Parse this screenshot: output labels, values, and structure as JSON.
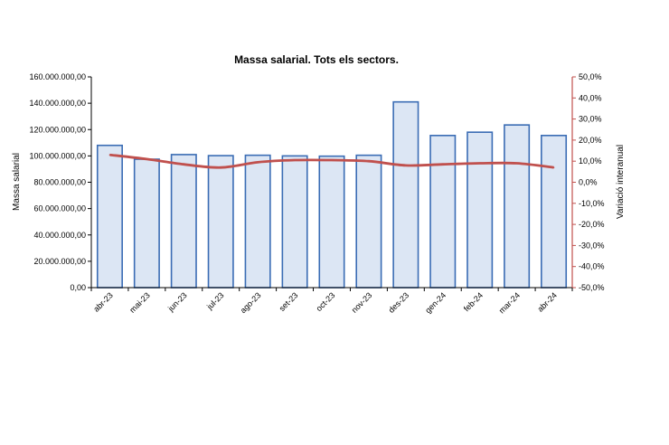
{
  "chart_data": {
    "type": "bar",
    "title": "Massa salarial. Tots els sectors.",
    "ylabel": "Massa salarial",
    "y2label": "Variació interanual",
    "categories": [
      "abr-23",
      "mai-23",
      "jun-23",
      "jul-23",
      "ago-23",
      "set-23",
      "oct-23",
      "nov-23",
      "des-23",
      "gen-24",
      "feb-24",
      "mar-24",
      "abr-24"
    ],
    "series": [
      {
        "name": "Massa salarial",
        "type": "bar",
        "axis": "left",
        "color": "#dce6f4",
        "stroke": "#3a6cb4",
        "values": [
          108000000,
          97500000,
          101000000,
          100200000,
          100500000,
          100000000,
          99800000,
          100500000,
          141000000,
          115500000,
          118000000,
          123500000,
          115500000
        ]
      },
      {
        "name": "Variació interanual",
        "type": "line",
        "axis": "right",
        "color": "#c0504d",
        "values": [
          13.0,
          11.0,
          8.5,
          7.0,
          9.5,
          10.5,
          10.5,
          10.0,
          8.0,
          8.5,
          9.0,
          9.0,
          7.0
        ]
      }
    ],
    "ylim": [
      0,
      160000000
    ],
    "yticks": [
      "0,00",
      "20.000.000,00",
      "40.000.000,00",
      "60.000.000,00",
      "80.000.000,00",
      "100.000.000,00",
      "120.000.000,00",
      "140.000.000,00",
      "160.000.000,00"
    ],
    "y2lim": [
      -50,
      50
    ],
    "y2ticks": [
      "-50,0%",
      "-40,0%",
      "-30,0%",
      "-20,0%",
      "-10,0%",
      "0,0%",
      "10,0%",
      "20,0%",
      "30,0%",
      "40,0%",
      "50,0%"
    ],
    "grid": false,
    "legend": "none"
  }
}
